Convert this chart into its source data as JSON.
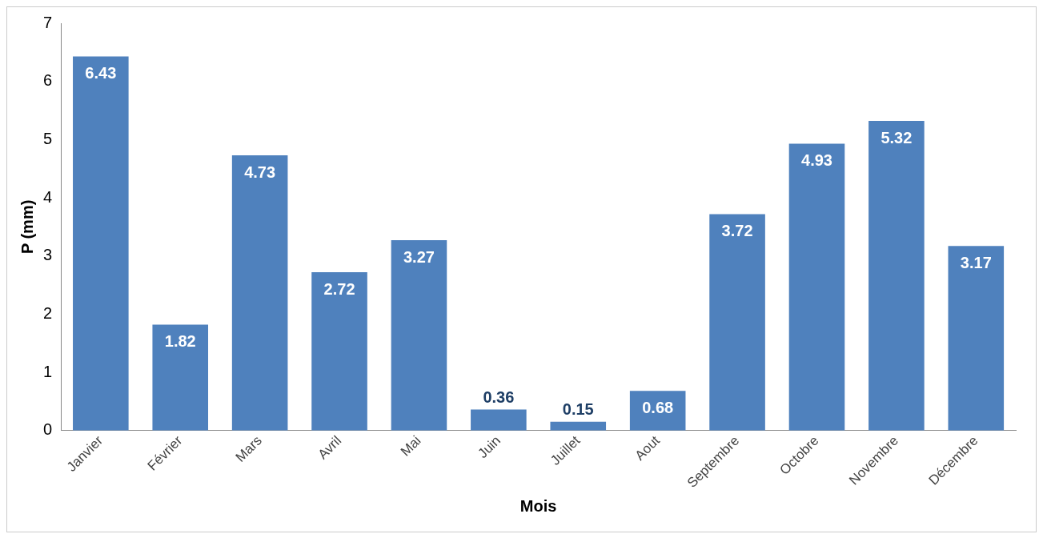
{
  "chart_data": {
    "type": "bar",
    "xlabel": "Mois",
    "ylabel": "P (mm)",
    "categories": [
      "Janvier",
      "Février",
      "Mars",
      "Avril",
      "Mai",
      "Juin",
      "Juillet",
      "Aout",
      "Septembre",
      "Octobre",
      "Novembre",
      "Décembre"
    ],
    "values": [
      6.43,
      1.82,
      4.73,
      2.72,
      3.27,
      0.36,
      0.15,
      0.68,
      3.72,
      4.93,
      5.32,
      3.17
    ],
    "color": "#4f81bd",
    "ylim": [
      0,
      7
    ],
    "yticks": [
      0,
      1,
      2,
      3,
      4,
      5,
      6,
      7
    ],
    "grid": false,
    "legend": false,
    "data_labels": true
  }
}
